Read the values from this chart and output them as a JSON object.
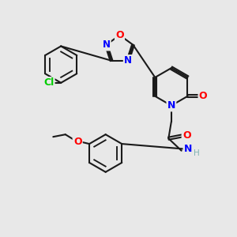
{
  "bg_color": "#e8e8e8",
  "bond_color": "#1a1a1a",
  "bond_width": 1.5,
  "atom_colors": {
    "N": "#0000ff",
    "O": "#ff0000",
    "Cl": "#00cc00",
    "H": "#7fb3b3",
    "C": "#1a1a1a"
  },
  "font_size_atom": 9
}
